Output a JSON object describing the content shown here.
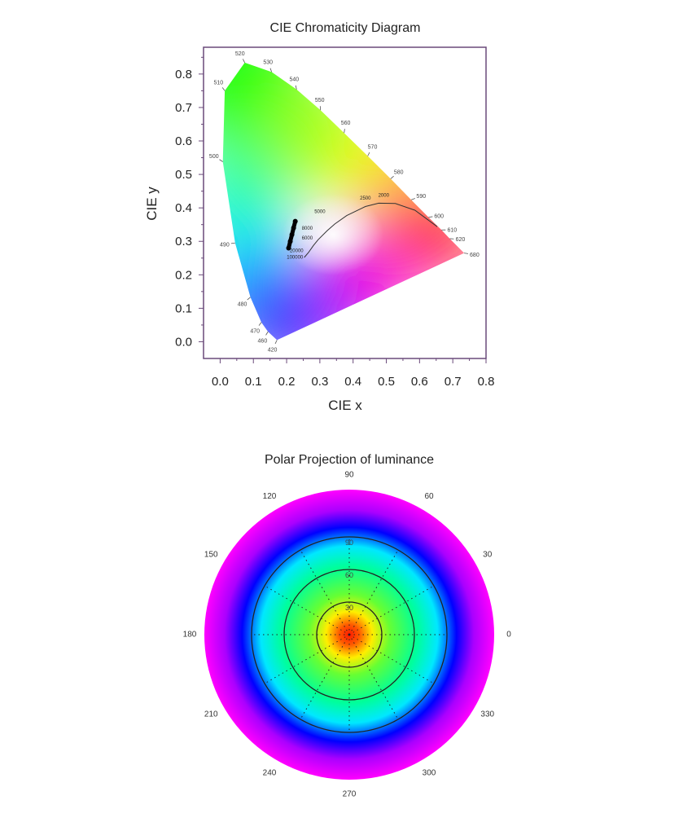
{
  "chart_data": [
    {
      "type": "scatter",
      "title": "CIE Chromaticity Diagram",
      "xlabel": "CIE x",
      "ylabel": "CIE y",
      "xlim": [
        -0.05,
        0.8
      ],
      "ylim": [
        -0.05,
        0.88
      ],
      "x_ticks": [
        "0.0",
        "0.1",
        "0.2",
        "0.3",
        "0.4",
        "0.5",
        "0.6",
        "0.7",
        "0.8"
      ],
      "y_ticks": [
        "0.0",
        "0.1",
        "0.2",
        "0.3",
        "0.4",
        "0.5",
        "0.6",
        "0.7",
        "0.8"
      ],
      "grid": false,
      "spectral_locus": [
        {
          "nm": "420",
          "x": 0.171,
          "y": 0.005
        },
        {
          "nm": "460",
          "x": 0.144,
          "y": 0.03
        },
        {
          "nm": "470",
          "x": 0.124,
          "y": 0.058
        },
        {
          "nm": "480",
          "x": 0.091,
          "y": 0.133
        },
        {
          "nm": "490",
          "x": 0.045,
          "y": 0.295
        },
        {
          "nm": "500",
          "x": 0.008,
          "y": 0.538
        },
        {
          "nm": "510",
          "x": 0.014,
          "y": 0.75
        },
        {
          "nm": "520",
          "x": 0.074,
          "y": 0.834
        },
        {
          "nm": "530",
          "x": 0.155,
          "y": 0.806
        },
        {
          "nm": "540",
          "x": 0.23,
          "y": 0.754
        },
        {
          "nm": "550",
          "x": 0.302,
          "y": 0.692
        },
        {
          "nm": "560",
          "x": 0.373,
          "y": 0.624
        },
        {
          "nm": "570",
          "x": 0.444,
          "y": 0.555
        },
        {
          "nm": "580",
          "x": 0.513,
          "y": 0.487
        },
        {
          "nm": "590",
          "x": 0.575,
          "y": 0.424
        },
        {
          "nm": "600",
          "x": 0.627,
          "y": 0.372
        },
        {
          "nm": "610",
          "x": 0.666,
          "y": 0.334
        },
        {
          "nm": "620",
          "x": 0.691,
          "y": 0.308
        },
        {
          "nm": "680",
          "x": 0.734,
          "y": 0.265
        }
      ],
      "planckian_locus": [
        {
          "label": "100000",
          "x": 0.253,
          "y": 0.252
        },
        {
          "label": "20000",
          "x": 0.266,
          "y": 0.267
        },
        {
          "label": "10000",
          "x": 0.281,
          "y": 0.288
        },
        {
          "label": "8000",
          "x": 0.295,
          "y": 0.305
        },
        {
          "label": "6000",
          "x": 0.322,
          "y": 0.332
        },
        {
          "label": "5000",
          "x": 0.345,
          "y": 0.352
        },
        {
          "label": "4000",
          "x": 0.381,
          "y": 0.377
        },
        {
          "label": "3000",
          "x": 0.437,
          "y": 0.404
        },
        {
          "label": "2500",
          "x": 0.477,
          "y": 0.414
        },
        {
          "label": "2000",
          "x": 0.527,
          "y": 0.413
        },
        {
          "label": "1500",
          "x": 0.586,
          "y": 0.393
        },
        {
          "label": "1000",
          "x": 0.653,
          "y": 0.344
        }
      ],
      "planckian_labels": [
        {
          "label": "5000",
          "x": 0.3,
          "y": 0.385
        },
        {
          "label": "8000",
          "x": 0.262,
          "y": 0.335
        },
        {
          "label": "6000",
          "x": 0.262,
          "y": 0.305
        },
        {
          "label": "20000",
          "x": 0.23,
          "y": 0.268
        },
        {
          "label": "100000",
          "x": 0.225,
          "y": 0.248
        },
        {
          "label": "2500",
          "x": 0.437,
          "y": 0.425
        },
        {
          "label": "2000",
          "x": 0.492,
          "y": 0.433
        }
      ],
      "measured_points": [
        {
          "x": 0.226,
          "y": 0.36
        },
        {
          "x": 0.221,
          "y": 0.34
        },
        {
          "x": 0.216,
          "y": 0.32
        },
        {
          "x": 0.211,
          "y": 0.3
        },
        {
          "x": 0.206,
          "y": 0.28
        }
      ]
    },
    {
      "type": "heatmap",
      "title": "Polar Projection of luminance",
      "projection": "polar",
      "angle_labels": [
        "0",
        "30",
        "60",
        "90",
        "120",
        "150",
        "180",
        "210",
        "240",
        "270",
        "300",
        "330"
      ],
      "radial_labels": [
        "30",
        "60",
        "90"
      ],
      "radial_max": 90,
      "colormap": [
        "#ff1a00",
        "#ffee00",
        "#66ff33",
        "#00ff9a",
        "#00e8ff",
        "#0000ff",
        "#aa00ff",
        "#ff00ff"
      ],
      "luminance_profile": [
        {
          "angle_deg": 0,
          "relative_luminance": 1.0
        },
        {
          "angle_deg": 10,
          "relative_luminance": 0.72
        },
        {
          "angle_deg": 20,
          "relative_luminance": 0.52
        },
        {
          "angle_deg": 30,
          "relative_luminance": 0.46
        },
        {
          "angle_deg": 40,
          "relative_luminance": 0.44
        },
        {
          "angle_deg": 50,
          "relative_luminance": 0.38
        },
        {
          "angle_deg": 60,
          "relative_luminance": 0.26
        },
        {
          "angle_deg": 70,
          "relative_luminance": 0.14
        },
        {
          "angle_deg": 80,
          "relative_luminance": 0.06
        },
        {
          "angle_deg": 90,
          "relative_luminance": 0.0
        }
      ]
    }
  ]
}
